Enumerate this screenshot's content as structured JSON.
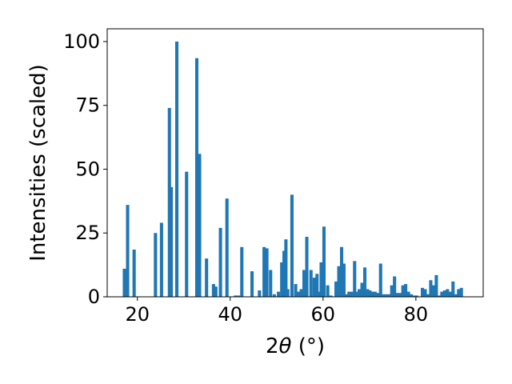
{
  "chart_data": {
    "type": "bar",
    "xlabel_main": "2",
    "xlabel_theta": "θ",
    "xlabel_unit": " (°)",
    "ylabel": "Intensities (scaled)",
    "xlim": [
      13.5,
      94.5
    ],
    "ylim": [
      0,
      105
    ],
    "xticks": [
      20,
      40,
      60,
      80
    ],
    "yticks": [
      0,
      25,
      50,
      75,
      100
    ],
    "bar_color": "#1f77b4",
    "bar_width": 0.7,
    "grid": false,
    "x": [
      17.2,
      17.9,
      19.3,
      23.9,
      25.2,
      26.9,
      27.3,
      28.5,
      30.6,
      32.8,
      33.4,
      34.9,
      36.4,
      36.9,
      37.9,
      39.3,
      41.1,
      41.8,
      42.5,
      44.7,
      46.3,
      47.3,
      47.9,
      48.7,
      49.5,
      50.4,
      51.1,
      51.6,
      52.0,
      52.4,
      53.3,
      54.1,
      54.7,
      55.3,
      55.9,
      56.5,
      57.4,
      58.1,
      58.7,
      59.2,
      59.6,
      60.2,
      61.0,
      61.7,
      62.8,
      63.4,
      64.0,
      64.5,
      65.0,
      65.6,
      66.2,
      66.8,
      67.3,
      67.8,
      68.4,
      69.0,
      69.6,
      70.1,
      70.6,
      71.2,
      71.8,
      72.4,
      73.0,
      73.6,
      74.2,
      74.8,
      75.4,
      76.0,
      76.6,
      77.2,
      77.8,
      78.4,
      79.0,
      79.6,
      80.2,
      81.4,
      82.0,
      82.6,
      83.2,
      83.8,
      84.4,
      85.0,
      85.6,
      86.2,
      86.8,
      87.4,
      88.0,
      88.6,
      89.2,
      89.8
    ],
    "values": [
      11.0,
      36.0,
      18.5,
      25.0,
      29.0,
      74.0,
      43.0,
      100.0,
      49.0,
      93.5,
      56.0,
      15.0,
      5.0,
      4.0,
      27.0,
      38.5,
      0.5,
      0.5,
      19.5,
      10.0,
      2.5,
      19.5,
      19.0,
      10.5,
      1.0,
      2.0,
      13.5,
      18.0,
      22.5,
      3.0,
      40.0,
      5.0,
      2.0,
      3.0,
      10.5,
      23.5,
      10.5,
      7.5,
      9.0,
      2.0,
      13.5,
      27.5,
      4.5,
      0.5,
      6.0,
      12.0,
      19.5,
      13.0,
      1.0,
      2.0,
      2.0,
      14.0,
      2.0,
      3.0,
      5.5,
      11.5,
      3.0,
      2.5,
      2.0,
      2.0,
      1.5,
      13.0,
      1.0,
      1.0,
      1.0,
      4.5,
      8.0,
      1.5,
      1.5,
      4.5,
      5.0,
      2.0,
      1.0,
      0.5,
      0.5,
      3.5,
      3.0,
      1.0,
      6.5,
      4.5,
      8.5,
      0.5,
      2.0,
      2.5,
      3.0,
      2.0,
      6.0,
      1.0,
      3.0,
      3.5
    ]
  }
}
